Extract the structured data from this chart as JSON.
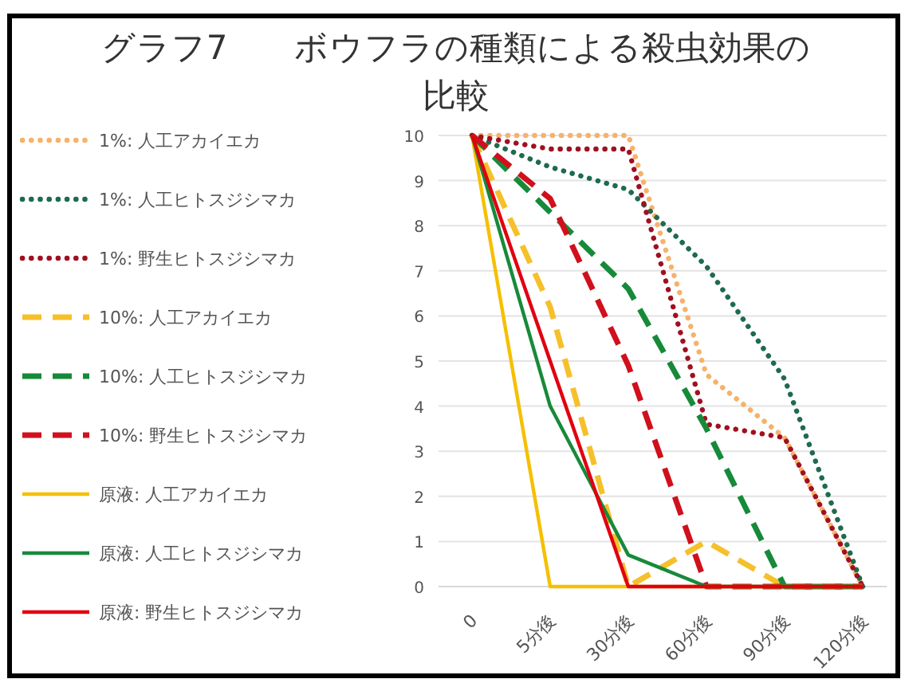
{
  "chart_data": {
    "type": "line",
    "title": "グラフ7　　ボウフラの種類による殺虫効果の比較",
    "categories": [
      "0",
      "5分後",
      "30分後",
      "60分後",
      "90分後",
      "120分後"
    ],
    "ylim": [
      0,
      10
    ],
    "yticks": [
      0,
      1,
      2,
      3,
      4,
      5,
      6,
      7,
      8,
      9,
      10
    ],
    "grid": "y",
    "legend": "left",
    "series": [
      {
        "name": "1%: 人工アカイエカ",
        "color": "#f6b26b",
        "line_style": "dotted",
        "values": [
          10,
          10,
          10,
          4.7,
          3.3,
          0
        ]
      },
      {
        "name": "1%: 人工ヒトスジシマカ",
        "color": "#1e6b4e",
        "line_style": "dotted",
        "values": [
          10,
          9.3,
          8.8,
          7.1,
          4.6,
          0
        ]
      },
      {
        "name": "1%: 野生ヒトスジシマカ",
        "color": "#a01020",
        "line_style": "dotted",
        "values": [
          10,
          9.7,
          9.7,
          3.6,
          3.3,
          0
        ]
      },
      {
        "name": "10%: 人工アカイエカ",
        "color": "#f5c02a",
        "line_style": "dashed",
        "values": [
          10,
          6.2,
          0,
          1,
          0,
          0
        ]
      },
      {
        "name": "10%: 人工ヒトスジシマカ",
        "color": "#178a3a",
        "line_style": "dashed",
        "values": [
          10,
          8.3,
          6.6,
          3.5,
          0,
          0
        ]
      },
      {
        "name": "10%: 野生ヒトスジシマカ",
        "color": "#d0101c",
        "line_style": "dashed",
        "values": [
          10,
          8.6,
          4.9,
          0,
          0,
          0
        ]
      },
      {
        "name": "原液: 人工アカイエカ",
        "color": "#f5c000",
        "line_style": "solid",
        "values": [
          10,
          0,
          0,
          0,
          0,
          0
        ]
      },
      {
        "name": "原液: 人工ヒトスジシマカ",
        "color": "#178a3a",
        "line_style": "solid",
        "values": [
          10,
          4,
          0.7,
          0,
          0,
          0
        ]
      },
      {
        "name": "原液: 野生ヒトスジシマカ",
        "color": "#e00010",
        "line_style": "solid",
        "values": [
          10,
          5,
          0,
          0,
          0,
          0
        ]
      }
    ]
  }
}
